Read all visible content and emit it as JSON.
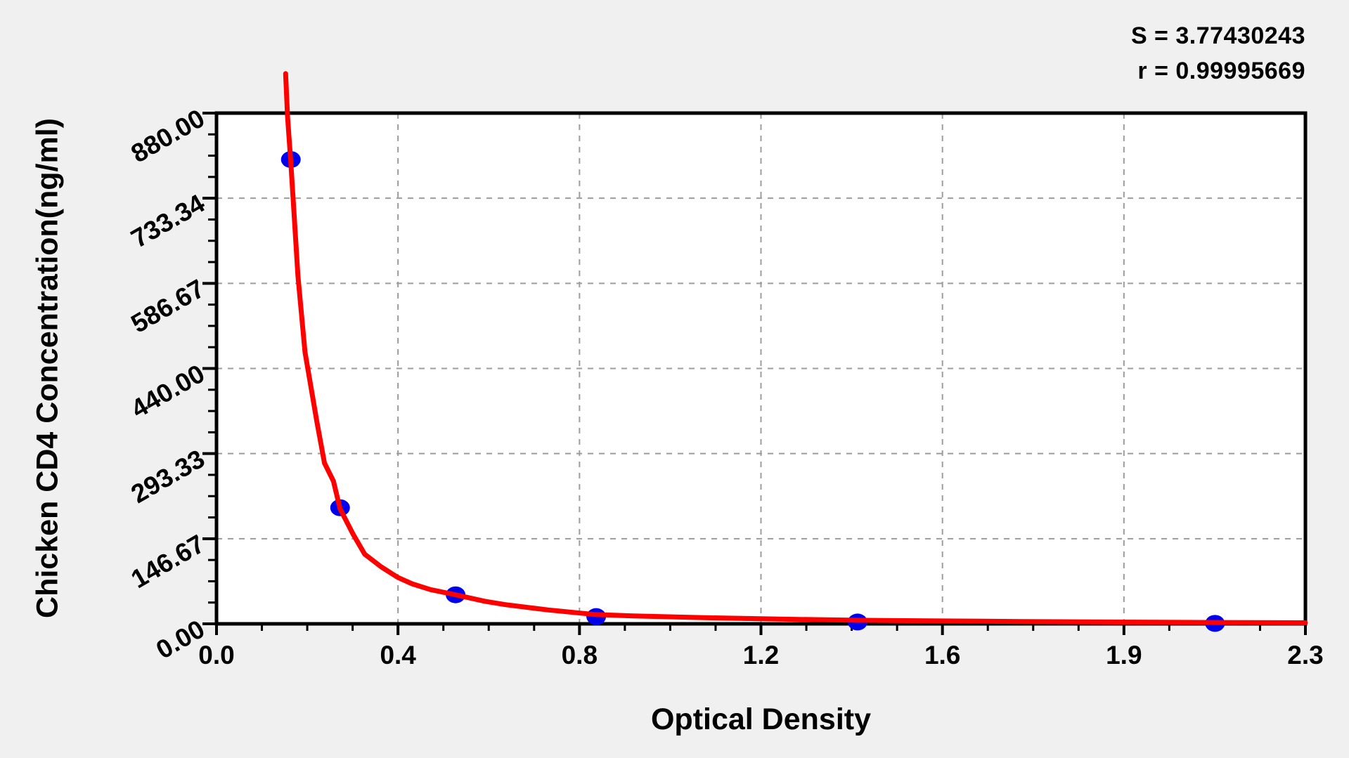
{
  "chart_data": {
    "type": "scatter",
    "title": "",
    "xlabel": "Optical Density",
    "ylabel": "Chicken CD4 Concentration(ng/ml)",
    "xlim": [
      0,
      2.3
    ],
    "ylim": [
      0,
      880
    ],
    "x_tick_labels": [
      "0.0",
      "0.4",
      "0.8",
      "1.2",
      "1.6",
      "1.9",
      "2.3"
    ],
    "y_tick_labels": [
      "0.00",
      "146.67",
      "293.33",
      "440.00",
      "586.67",
      "733.34",
      "880.00"
    ],
    "minor_ticks_per_interval": 3,
    "grid": "dashed",
    "legend": null,
    "annotations": {
      "s_line": "S = 3.77430243",
      "r_line": "r = 0.99995669"
    },
    "series": [
      {
        "name": "standard-points",
        "type": "scatter",
        "od": [
          0.157,
          0.261,
          0.505,
          0.802,
          1.354,
          2.109
        ],
        "concentration": [
          800,
          200,
          50,
          12.5,
          3.13,
          0.78
        ]
      },
      {
        "name": "fitted-curve",
        "type": "line",
        "od": [
          0.146,
          0.15,
          0.157,
          0.162,
          0.172,
          0.187,
          0.212,
          0.228,
          0.247,
          0.261,
          0.288,
          0.313,
          0.348,
          0.383,
          0.413,
          0.452,
          0.505,
          0.566,
          0.61,
          0.7,
          0.8,
          0.88,
          1.03,
          1.2,
          1.35,
          1.5,
          1.7,
          1.9,
          2.11,
          2.3
        ],
        "concentration": [
          948,
          875,
          795,
          730,
          600,
          468,
          348,
          277,
          246,
          198,
          155,
          120,
          98,
          80,
          69,
          59,
          50,
          39,
          33,
          24,
          16,
          13.5,
          10.5,
          8,
          6.2,
          5.2,
          4.0,
          3.0,
          2.3,
          1.8
        ]
      }
    ],
    "colors": {
      "curve": "#ff0000",
      "points": "#0000ee",
      "axis": "#000000",
      "grid": "#9c9c9c",
      "plot_background": "#ffffff",
      "page_background": "#f0f0f0"
    }
  }
}
